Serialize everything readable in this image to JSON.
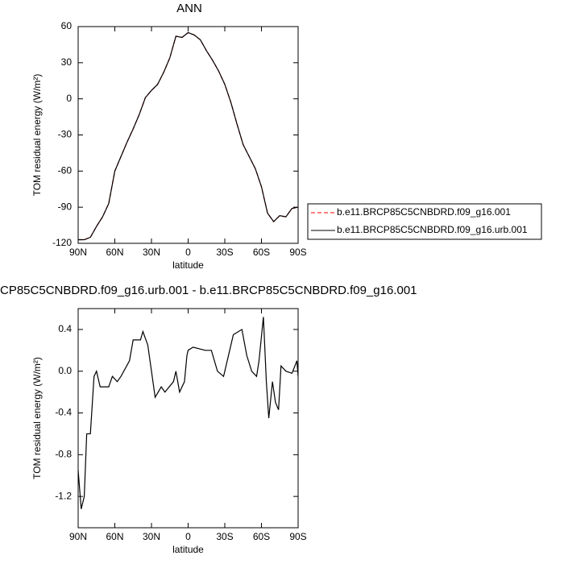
{
  "chart_data": [
    {
      "type": "line",
      "title": "ANN",
      "xlabel": "latitude",
      "ylabel": "TOM residual energy (W/m²)",
      "x": [
        90,
        85,
        80,
        75,
        70,
        65,
        60,
        55,
        50,
        45,
        40,
        35,
        30,
        25,
        20,
        15,
        10,
        5,
        0,
        -5,
        -10,
        -15,
        -20,
        -25,
        -30,
        -35,
        -40,
        -45,
        -50,
        -55,
        -60,
        -65,
        -70,
        -75,
        -80,
        -85,
        -90
      ],
      "series": [
        {
          "name": "b.e11.BRCP85C5CNBDRD.f09_g16.001",
          "color": "#ff0000",
          "dashed": true,
          "values": [
            -117,
            -117,
            -115,
            -106,
            -98,
            -87,
            -60,
            -48,
            -36,
            -25,
            -13,
            1,
            7,
            12,
            22,
            34,
            52,
            51,
            55,
            53,
            49,
            40,
            32,
            23,
            12,
            -3,
            -21,
            -38,
            -48,
            -58,
            -73,
            -95,
            -102,
            -97,
            -98,
            -91,
            -90
          ]
        },
        {
          "name": "b.e11.BRCP85C5CNBDRD.f09_g16.urb.001",
          "color": "#000000",
          "dashed": false,
          "values": [
            -117,
            -117,
            -115,
            -106,
            -98,
            -87,
            -60,
            -48,
            -36,
            -25,
            -13,
            1,
            7,
            12,
            22,
            34,
            52,
            51,
            55,
            53,
            49,
            40,
            32,
            23,
            12,
            -3,
            -21,
            -38,
            -48,
            -58,
            -73,
            -95,
            -102,
            -97,
            -98,
            -91,
            -90
          ]
        }
      ],
      "xlim": [
        90,
        -90
      ],
      "xticks": [
        {
          "value": 90,
          "label": "90N"
        },
        {
          "value": 60,
          "label": "60N"
        },
        {
          "value": 30,
          "label": "30N"
        },
        0,
        {
          "value": -30,
          "label": "30S"
        },
        {
          "value": -60,
          "label": "60S"
        },
        {
          "value": -90,
          "label": "90S"
        }
      ],
      "ylim": [
        -120,
        60
      ],
      "yticks": [
        60,
        30,
        0,
        -30,
        -60,
        -90,
        -120
      ],
      "legend": "right"
    },
    {
      "type": "line",
      "title": "CP85C5CNBDRD.f09_g16.urb.001 - b.e11.BRCP85C5CNBDRD.f09_g16.001",
      "xlabel": "latitude",
      "ylabel": "TOM residual energy (W/m²)",
      "x": [
        90,
        87.5,
        85,
        83,
        80,
        77,
        75,
        72,
        65,
        62,
        58,
        55,
        48,
        45,
        39,
        37,
        33,
        30,
        27,
        22,
        19,
        12,
        10,
        7,
        3,
        1,
        0,
        -4,
        -14,
        -19,
        -24,
        -29,
        -34,
        -37,
        -44,
        -48,
        -52,
        -56,
        -58,
        -61.6,
        -64,
        -66,
        -69,
        -71.5,
        -74,
        -76,
        -80,
        -85,
        -89,
        -90
      ],
      "series": [
        {
          "color": "#000000",
          "values": [
            -0.95,
            -1.32,
            -1.2,
            -0.6,
            -0.6,
            -0.05,
            0.0,
            -0.15,
            -0.15,
            -0.05,
            -0.1,
            -0.05,
            0.1,
            0.3,
            0.3,
            0.38,
            0.25,
            0.0,
            -0.25,
            -0.15,
            -0.2,
            -0.1,
            0.0,
            -0.2,
            -0.1,
            0.15,
            0.2,
            0.23,
            0.2,
            0.2,
            0.0,
            -0.05,
            0.2,
            0.35,
            0.4,
            0.15,
            0.0,
            -0.05,
            0.1,
            0.52,
            -0.1,
            -0.45,
            -0.1,
            -0.3,
            -0.37,
            0.05,
            0.0,
            -0.02,
            0.1,
            -0.05
          ]
        }
      ],
      "xlim": [
        90,
        -90
      ],
      "xticks": [
        {
          "value": 90,
          "label": "90N"
        },
        {
          "value": 60,
          "label": "60N"
        },
        {
          "value": 30,
          "label": "30N"
        },
        0,
        {
          "value": -30,
          "label": "30S"
        },
        {
          "value": -60,
          "label": "60S"
        },
        {
          "value": -90,
          "label": "90S"
        }
      ],
      "ylim": [
        -1.5,
        0.6
      ],
      "yticks": [
        0.4,
        {
          "value": 0,
          "label": "0.0"
        },
        -0.4,
        -0.8,
        -1.2
      ]
    }
  ]
}
